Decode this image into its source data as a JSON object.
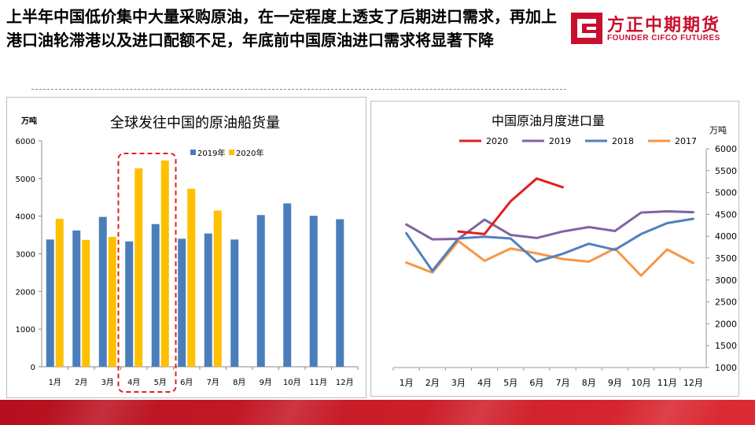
{
  "headline": "上半年中国低价集中大量采购原油，在一定程度上透支了后期进口需求，再加上港口油轮滞港以及进口配额不足，年底前中国原油进口需求将显著下降",
  "logo": {
    "cn": "方正中期期货",
    "en": "FOUNDER CIFCO FUTURES"
  },
  "colors": {
    "brand": "#c8102e",
    "s2019_bar": "#4a7ebb",
    "s2020_bar": "#ffc000",
    "s2020_line": "#e02020",
    "s2019_line": "#8064a2",
    "s2018_line": "#4f81bd",
    "s2017_line": "#f79646",
    "highlight": "#e02020"
  },
  "chart_data": [
    {
      "type": "bar",
      "title": "全球发往中国的原油船货量",
      "unit": "万吨",
      "categories": [
        "1月",
        "2月",
        "3月",
        "4月",
        "5月",
        "6月",
        "7月",
        "8月",
        "9月",
        "10月",
        "11月",
        "12月"
      ],
      "series": [
        {
          "name": "2019年",
          "values": [
            3380,
            3620,
            3980,
            3330,
            3790,
            3400,
            3540,
            3380,
            4030,
            4340,
            4010,
            3920
          ]
        },
        {
          "name": "2020年",
          "values": [
            3930,
            3370,
            3450,
            5270,
            5480,
            4730,
            4150,
            null,
            null,
            null,
            null,
            null
          ]
        }
      ],
      "ylim": [
        0,
        6000
      ],
      "yticks": [
        "0",
        "1000",
        "2000",
        "3000",
        "4000",
        "5000",
        "6000"
      ],
      "highlight": [
        "4月",
        "5月"
      ],
      "legend": "top-right"
    },
    {
      "type": "line",
      "title": "中国原油月度进口量",
      "unit": "万吨",
      "categories": [
        "1月",
        "2月",
        "3月",
        "4月",
        "5月",
        "6月",
        "7月",
        "8月",
        "9月",
        "10月",
        "11月",
        "12月"
      ],
      "series": [
        {
          "name": "2020",
          "values": [
            null,
            null,
            4110,
            4050,
            4800,
            5320,
            5120,
            null,
            null,
            null,
            null,
            null
          ]
        },
        {
          "name": "2019",
          "values": [
            4270,
            3930,
            3940,
            4380,
            4030,
            3960,
            4110,
            4210,
            4120,
            4540,
            4570,
            4550
          ]
        },
        {
          "name": "2018",
          "values": [
            4070,
            3210,
            3950,
            3990,
            3950,
            3420,
            3600,
            3830,
            3690,
            4050,
            4300,
            4400
          ]
        },
        {
          "name": "2017",
          "values": [
            3400,
            3170,
            3890,
            3440,
            3720,
            3610,
            3480,
            3420,
            3720,
            3100,
            3700,
            3390
          ]
        }
      ],
      "ylim": [
        1000,
        6000
      ],
      "yticks": [
        "1000",
        "1500",
        "2000",
        "2500",
        "3000",
        "3500",
        "4000",
        "4500",
        "5000",
        "5500",
        "6000"
      ],
      "y_axis_side": "right",
      "legend": "top"
    }
  ]
}
